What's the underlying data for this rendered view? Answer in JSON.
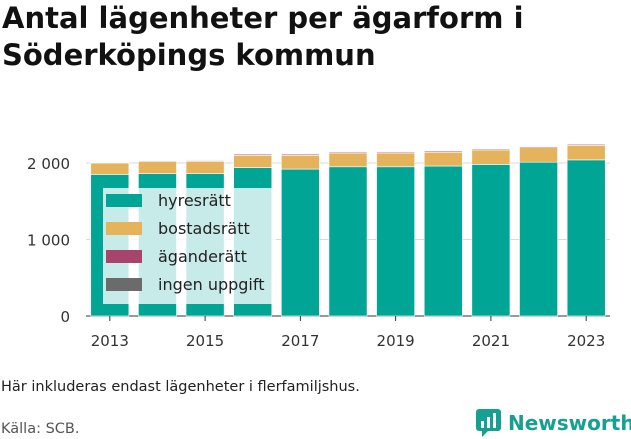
{
  "title": "Antal lägenheter per ägarform i Söderköpings kommun",
  "note": "Här inkluderas endast lägenheter i flerfamiljshus.",
  "source": "Källa: SCB.",
  "logo_text": "Newsworthy",
  "chart_data": {
    "type": "bar",
    "stacked": true,
    "categories": [
      "2013",
      "2014",
      "2015",
      "2016",
      "2017",
      "2018",
      "2019",
      "2020",
      "2021",
      "2022",
      "2023"
    ],
    "x_tick_labels": [
      "2013",
      "2015",
      "2017",
      "2019",
      "2021",
      "2023"
    ],
    "y_ticks": [
      0,
      1000,
      2000
    ],
    "y_tick_labels": [
      "0",
      "1 000",
      "2 000"
    ],
    "ylim": [
      0,
      2300
    ],
    "grid": true,
    "legend_position": "top-left",
    "series": [
      {
        "name": "hyresrätt",
        "color": "#00a596",
        "values": [
          1850,
          1860,
          1860,
          1940,
          1920,
          1950,
          1950,
          1960,
          1980,
          2010,
          2040
        ]
      },
      {
        "name": "bostadsrätt",
        "color": "#e4b35c",
        "values": [
          150,
          160,
          160,
          160,
          180,
          180,
          180,
          180,
          190,
          190,
          190
        ]
      },
      {
        "name": "äganderätt",
        "color": "#a6446b",
        "values": [
          8,
          10,
          12,
          14,
          14,
          14,
          14,
          14,
          14,
          14,
          14
        ]
      },
      {
        "name": "ingen uppgift",
        "color": "#6b6b6b",
        "values": [
          6,
          6,
          8,
          8,
          8,
          8,
          8,
          8,
          8,
          8,
          8
        ]
      }
    ]
  }
}
